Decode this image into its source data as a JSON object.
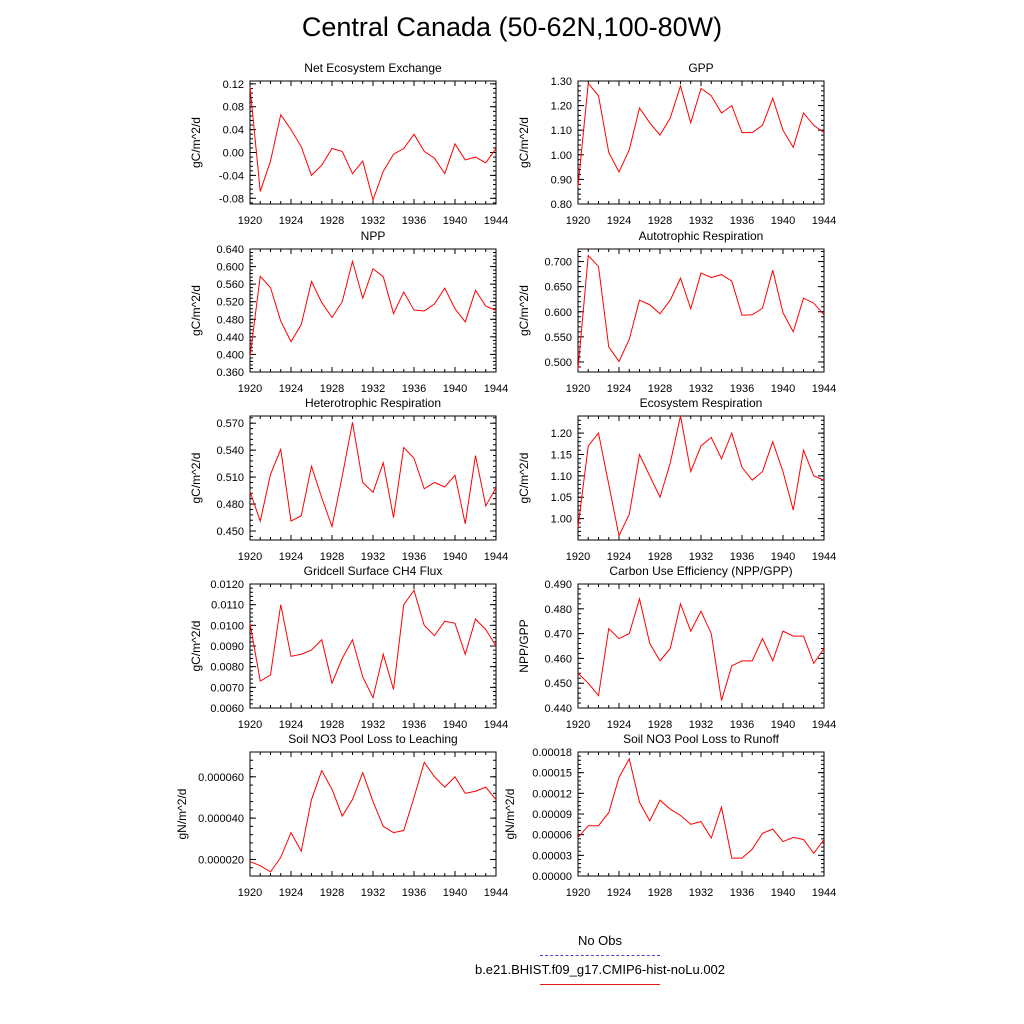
{
  "title": "Central Canada (50-62N,100-80W)",
  "legend": {
    "entries": [
      {
        "label": "No Obs",
        "color": "#4040c0",
        "style": "dashed"
      },
      {
        "label": "b.e21.BHIST.f09_g17.CMIP6-hist-noLu.002",
        "color": "#e02020",
        "style": "solid"
      }
    ]
  },
  "colors": {
    "series": "#ff0000",
    "axis": "#000000"
  },
  "chart_data": [
    {
      "type": "line",
      "title": "Net Ecosystem Exchange",
      "ylabel": "gC/m^2/d",
      "xlabel": "",
      "xlim": [
        1920,
        1944
      ],
      "ylim": [
        -0.09,
        0.125
      ],
      "xticks": [
        "1920",
        "1924",
        "1928",
        "1932",
        "1936",
        "1940",
        "1944"
      ],
      "yticks": [
        -0.08,
        -0.04,
        0.0,
        0.04,
        0.08,
        0.12
      ],
      "ytick_labels": [
        "-0.08",
        "-0.04",
        "0.00",
        "0.04",
        "0.08",
        "0.12"
      ],
      "x": [
        1920,
        1921,
        1922,
        1923,
        1924,
        1925,
        1926,
        1927,
        1928,
        1929,
        1930,
        1931,
        1932,
        1933,
        1934,
        1935,
        1936,
        1937,
        1938,
        1939,
        1940,
        1941,
        1942,
        1943,
        1944
      ],
      "series": [
        {
          "values": [
            0.115,
            -0.068,
            -0.015,
            0.066,
            0.04,
            0.01,
            -0.04,
            -0.022,
            0.007,
            0.002,
            -0.037,
            -0.015,
            -0.083,
            -0.033,
            -0.003,
            0.007,
            0.032,
            0.002,
            -0.01,
            -0.037,
            0.015,
            -0.013,
            -0.008,
            -0.018,
            0.007
          ]
        }
      ]
    },
    {
      "type": "line",
      "title": "GPP",
      "ylabel": "gC/m^2/d",
      "xlabel": "",
      "xlim": [
        1920,
        1944
      ],
      "ylim": [
        0.8,
        1.3
      ],
      "xticks": [
        "1920",
        "1924",
        "1928",
        "1932",
        "1936",
        "1940",
        "1944"
      ],
      "yticks": [
        0.8,
        0.9,
        1.0,
        1.1,
        1.2,
        1.3
      ],
      "ytick_labels": [
        "0.80",
        "0.90",
        "1.00",
        "1.10",
        "1.20",
        "1.30"
      ],
      "x": [
        1920,
        1921,
        1922,
        1923,
        1924,
        1925,
        1926,
        1927,
        1928,
        1929,
        1930,
        1931,
        1932,
        1933,
        1934,
        1935,
        1936,
        1937,
        1938,
        1939,
        1940,
        1941,
        1942,
        1943,
        1944
      ],
      "series": [
        {
          "values": [
            0.87,
            1.29,
            1.24,
            1.01,
            0.93,
            1.02,
            1.19,
            1.13,
            1.08,
            1.15,
            1.28,
            1.13,
            1.27,
            1.24,
            1.17,
            1.2,
            1.09,
            1.09,
            1.12,
            1.23,
            1.1,
            1.03,
            1.17,
            1.12,
            1.09
          ]
        }
      ]
    },
    {
      "type": "line",
      "title": "NPP",
      "ylabel": "gC/m^2/d",
      "xlabel": "",
      "xlim": [
        1920,
        1944
      ],
      "ylim": [
        0.36,
        0.64
      ],
      "xticks": [
        "1920",
        "1924",
        "1928",
        "1932",
        "1936",
        "1940",
        "1944"
      ],
      "yticks": [
        0.36,
        0.4,
        0.44,
        0.48,
        0.52,
        0.56,
        0.6,
        0.64
      ],
      "ytick_labels": [
        "0.360",
        "0.400",
        "0.440",
        "0.480",
        "0.520",
        "0.560",
        "0.600",
        "0.640"
      ],
      "x": [
        1920,
        1921,
        1922,
        1923,
        1924,
        1925,
        1926,
        1927,
        1928,
        1929,
        1930,
        1931,
        1932,
        1933,
        1934,
        1935,
        1936,
        1937,
        1938,
        1939,
        1940,
        1941,
        1942,
        1943,
        1944
      ],
      "series": [
        {
          "values": [
            0.395,
            0.578,
            0.552,
            0.476,
            0.429,
            0.468,
            0.566,
            0.518,
            0.484,
            0.52,
            0.612,
            0.528,
            0.595,
            0.577,
            0.493,
            0.542,
            0.501,
            0.499,
            0.515,
            0.551,
            0.504,
            0.474,
            0.546,
            0.51,
            0.5
          ]
        }
      ]
    },
    {
      "type": "line",
      "title": "Autotrophic Respiration",
      "ylabel": "gC/m^2/d",
      "xlabel": "",
      "xlim": [
        1920,
        1944
      ],
      "ylim": [
        0.48,
        0.725
      ],
      "xticks": [
        "1920",
        "1924",
        "1928",
        "1932",
        "1936",
        "1940",
        "1944"
      ],
      "yticks": [
        0.5,
        0.55,
        0.6,
        0.65,
        0.7
      ],
      "ytick_labels": [
        "0.500",
        "0.550",
        "0.600",
        "0.650",
        "0.700"
      ],
      "x": [
        1920,
        1921,
        1922,
        1923,
        1924,
        1925,
        1926,
        1927,
        1928,
        1929,
        1930,
        1931,
        1932,
        1933,
        1934,
        1935,
        1936,
        1937,
        1938,
        1939,
        1940,
        1941,
        1942,
        1943,
        1944
      ],
      "series": [
        {
          "values": [
            0.485,
            0.712,
            0.69,
            0.53,
            0.501,
            0.545,
            0.623,
            0.614,
            0.596,
            0.623,
            0.667,
            0.606,
            0.677,
            0.668,
            0.674,
            0.661,
            0.593,
            0.594,
            0.607,
            0.683,
            0.598,
            0.56,
            0.627,
            0.617,
            0.594
          ]
        }
      ]
    },
    {
      "type": "line",
      "title": "Heterotrophic Respiration",
      "ylabel": "gC/m^2/d",
      "xlabel": "",
      "xlim": [
        1920,
        1944
      ],
      "ylim": [
        0.44,
        0.578
      ],
      "xticks": [
        "1920",
        "1924",
        "1928",
        "1932",
        "1936",
        "1940",
        "1944"
      ],
      "yticks": [
        0.45,
        0.48,
        0.51,
        0.54,
        0.57
      ],
      "ytick_labels": [
        "0.450",
        "0.480",
        "0.510",
        "0.540",
        "0.570"
      ],
      "x": [
        1920,
        1921,
        1922,
        1923,
        1924,
        1925,
        1926,
        1927,
        1928,
        1929,
        1930,
        1931,
        1932,
        1933,
        1934,
        1935,
        1936,
        1937,
        1938,
        1939,
        1940,
        1941,
        1942,
        1943,
        1944
      ],
      "series": [
        {
          "values": [
            0.494,
            0.461,
            0.513,
            0.541,
            0.461,
            0.467,
            0.522,
            0.487,
            0.455,
            0.511,
            0.571,
            0.504,
            0.493,
            0.526,
            0.465,
            0.543,
            0.531,
            0.497,
            0.504,
            0.499,
            0.512,
            0.458,
            0.534,
            0.478,
            0.498
          ]
        }
      ]
    },
    {
      "type": "line",
      "title": "Ecosystem Respiration",
      "ylabel": "gC/m^2/d",
      "xlabel": "",
      "xlim": [
        1920,
        1944
      ],
      "ylim": [
        0.95,
        1.24
      ],
      "xticks": [
        "1920",
        "1924",
        "1928",
        "1932",
        "1936",
        "1940",
        "1944"
      ],
      "yticks": [
        1.0,
        1.05,
        1.1,
        1.15,
        1.2
      ],
      "ytick_labels": [
        "1.00",
        "1.05",
        "1.10",
        "1.15",
        "1.20"
      ],
      "x": [
        1920,
        1921,
        1922,
        1923,
        1924,
        1925,
        1926,
        1927,
        1928,
        1929,
        1930,
        1931,
        1932,
        1933,
        1934,
        1935,
        1936,
        1937,
        1938,
        1939,
        1940,
        1941,
        1942,
        1943,
        1944
      ],
      "series": [
        {
          "values": [
            0.98,
            1.17,
            1.2,
            1.08,
            0.96,
            1.01,
            1.15,
            1.1,
            1.05,
            1.13,
            1.24,
            1.11,
            1.17,
            1.19,
            1.14,
            1.2,
            1.12,
            1.09,
            1.11,
            1.18,
            1.11,
            1.02,
            1.16,
            1.1,
            1.09
          ]
        }
      ]
    },
    {
      "type": "line",
      "title": "Gridcell Surface CH4 Flux",
      "ylabel": "gC/m^2/d",
      "xlabel": "",
      "xlim": [
        1920,
        1944
      ],
      "ylim": [
        0.006,
        0.012
      ],
      "xticks": [
        "1920",
        "1924",
        "1928",
        "1932",
        "1936",
        "1940",
        "1944"
      ],
      "yticks": [
        0.006,
        0.007,
        0.008,
        0.009,
        0.01,
        0.011,
        0.012
      ],
      "ytick_labels": [
        "0.0060",
        "0.0070",
        "0.0080",
        "0.0090",
        "0.0100",
        "0.0110",
        "0.0120"
      ],
      "x": [
        1920,
        1921,
        1922,
        1923,
        1924,
        1925,
        1926,
        1927,
        1928,
        1929,
        1930,
        1931,
        1932,
        1933,
        1934,
        1935,
        1936,
        1937,
        1938,
        1939,
        1940,
        1941,
        1942,
        1943,
        1944
      ],
      "series": [
        {
          "values": [
            0.0101,
            0.0073,
            0.0076,
            0.011,
            0.0085,
            0.0086,
            0.0088,
            0.0093,
            0.0072,
            0.0084,
            0.0093,
            0.0075,
            0.0065,
            0.0086,
            0.0069,
            0.011,
            0.0117,
            0.01,
            0.0095,
            0.0102,
            0.0101,
            0.0086,
            0.0103,
            0.0098,
            0.009
          ]
        }
      ]
    },
    {
      "type": "line",
      "title": "Carbon Use Efficiency (NPP/GPP)",
      "ylabel": "NPP/GPP",
      "xlabel": "",
      "xlim": [
        1920,
        1944
      ],
      "ylim": [
        0.44,
        0.49
      ],
      "xticks": [
        "1920",
        "1924",
        "1928",
        "1932",
        "1936",
        "1940",
        "1944"
      ],
      "yticks": [
        0.44,
        0.45,
        0.46,
        0.47,
        0.48,
        0.49
      ],
      "ytick_labels": [
        "0.440",
        "0.450",
        "0.460",
        "0.470",
        "0.480",
        "0.490"
      ],
      "x": [
        1920,
        1921,
        1922,
        1923,
        1924,
        1925,
        1926,
        1927,
        1928,
        1929,
        1930,
        1931,
        1932,
        1933,
        1934,
        1935,
        1936,
        1937,
        1938,
        1939,
        1940,
        1941,
        1942,
        1943,
        1944
      ],
      "series": [
        {
          "values": [
            0.454,
            0.45,
            0.445,
            0.472,
            0.468,
            0.47,
            0.484,
            0.466,
            0.459,
            0.464,
            0.482,
            0.471,
            0.479,
            0.47,
            0.443,
            0.457,
            0.459,
            0.459,
            0.468,
            0.459,
            0.471,
            0.469,
            0.469,
            0.458,
            0.464
          ]
        }
      ]
    },
    {
      "type": "line",
      "title": "Soil NO3 Pool Loss to Leaching",
      "ylabel": "gN/m^2/d",
      "xlabel": "",
      "xlim": [
        1920,
        1944
      ],
      "ylim": [
        1.2e-05,
        7.2e-05
      ],
      "xticks": [
        "1920",
        "1924",
        "1928",
        "1932",
        "1936",
        "1940",
        "1944"
      ],
      "yticks": [
        2e-05,
        4e-05,
        6e-05
      ],
      "ytick_labels": [
        "0.000020",
        "0.000040",
        "0.000060"
      ],
      "x": [
        1920,
        1921,
        1922,
        1923,
        1924,
        1925,
        1926,
        1927,
        1928,
        1929,
        1930,
        1931,
        1932,
        1933,
        1934,
        1935,
        1936,
        1937,
        1938,
        1939,
        1940,
        1941,
        1942,
        1943,
        1944
      ],
      "series": [
        {
          "values": [
            1.9e-05,
            1.7e-05,
            1.4e-05,
            2.1e-05,
            3.3e-05,
            2.4e-05,
            4.9e-05,
            6.3e-05,
            5.4e-05,
            4.1e-05,
            4.9e-05,
            6.2e-05,
            4.8e-05,
            3.6e-05,
            3.3e-05,
            3.4e-05,
            5e-05,
            6.7e-05,
            6e-05,
            5.5e-05,
            6e-05,
            5.2e-05,
            5.3e-05,
            5.5e-05,
            4.9e-05
          ]
        }
      ]
    },
    {
      "type": "line",
      "title": "Soil NO3 Pool Loss to Runoff",
      "ylabel": "gN/m^2/d",
      "xlabel": "",
      "xlim": [
        1920,
        1944
      ],
      "ylim": [
        0.0,
        0.00018
      ],
      "xticks": [
        "1920",
        "1924",
        "1928",
        "1932",
        "1936",
        "1940",
        "1944"
      ],
      "yticks": [
        0.0,
        3e-05,
        6e-05,
        9e-05,
        0.00012,
        0.00015,
        0.00018
      ],
      "ytick_labels": [
        "0.00000",
        "0.00003",
        "0.00006",
        "0.00009",
        "0.00012",
        "0.00015",
        "0.00018"
      ],
      "x": [
        1920,
        1921,
        1922,
        1923,
        1924,
        1925,
        1926,
        1927,
        1928,
        1929,
        1930,
        1931,
        1932,
        1933,
        1934,
        1935,
        1936,
        1937,
        1938,
        1939,
        1940,
        1941,
        1942,
        1943,
        1944
      ],
      "series": [
        {
          "values": [
            5.6e-05,
            7.3e-05,
            7.3e-05,
            9.2e-05,
            0.000143,
            0.00017,
            0.000107,
            8e-05,
            0.00011,
            9.7e-05,
            8.8e-05,
            7.5e-05,
            7.9e-05,
            5.5e-05,
            0.0001,
            2.6e-05,
            2.6e-05,
            3.9e-05,
            6.2e-05,
            6.8e-05,
            5e-05,
            5.6e-05,
            5.3e-05,
            3.3e-05,
            5.3e-05
          ]
        }
      ]
    }
  ]
}
